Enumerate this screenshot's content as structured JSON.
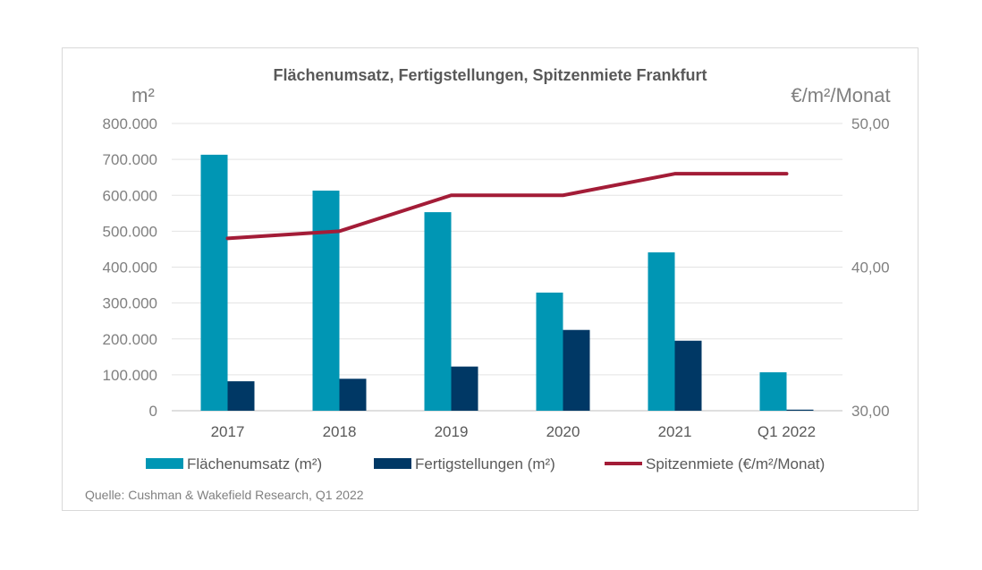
{
  "chart_data": {
    "type": "bar",
    "title": "Flächenumsatz, Fertigstellungen, Spitzenmiete Frankfurt",
    "y_left_unit": "m²",
    "y_right_unit": "€/m²/Monat",
    "categories": [
      "2017",
      "2018",
      "2019",
      "2020",
      "2021",
      "Q1 2022"
    ],
    "y_left_ticks": [
      "0",
      "100.000",
      "200.000",
      "300.000",
      "400.000",
      "500.000",
      "600.000",
      "700.000",
      "800.000"
    ],
    "y_right_ticks": [
      "30,00",
      "40,00",
      "50,00"
    ],
    "ylim_left": [
      0,
      800000
    ],
    "ylim_right": [
      30,
      50
    ],
    "grid": true,
    "legend_position": "bottom",
    "series": [
      {
        "name": "Flächenumsatz (m²)",
        "type": "bar",
        "axis": "left",
        "color": "#0096b4",
        "values": [
          713000,
          613000,
          553000,
          329000,
          441000,
          107000
        ]
      },
      {
        "name": "Fertigstellungen (m²)",
        "type": "bar",
        "axis": "left",
        "color": "#003865",
        "values": [
          82000,
          89000,
          123000,
          225000,
          195000,
          3000
        ]
      },
      {
        "name": "Spitzenmiete (€/m²/Monat)",
        "type": "line",
        "axis": "right",
        "color": "#a31c37",
        "values": [
          42.0,
          42.5,
          45.0,
          45.0,
          46.5,
          46.5
        ]
      }
    ],
    "source": "Quelle: Cushman & Wakefield Research, Q1 2022"
  }
}
